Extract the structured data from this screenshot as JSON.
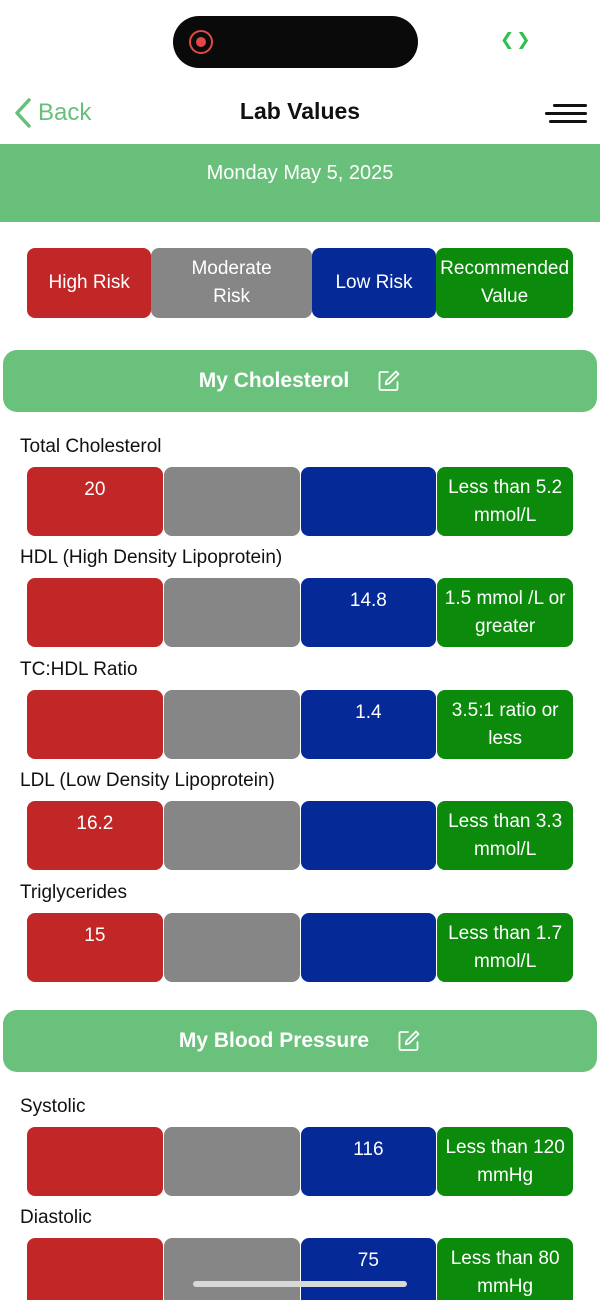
{
  "nav": {
    "back_label": "Back",
    "title": "Lab Values"
  },
  "date": "Monday May 5, 2025",
  "legend": [
    {
      "label": "High Risk",
      "color": "#c22727"
    },
    {
      "label": "Moderate Risk",
      "color": "#868686"
    },
    {
      "label": "Low Risk",
      "color": "#052997"
    },
    {
      "label": "Recommended Value",
      "color": "#0c8a0c"
    }
  ],
  "cholesterol": {
    "title": "My Cholesterol",
    "rows": [
      {
        "label": "Total Cholesterol",
        "high": "20",
        "moderate": "",
        "low": "",
        "recommended": "Less than 5.2 mmol/L"
      },
      {
        "label": "HDL (High Density Lipoprotein)",
        "high": "",
        "moderate": "",
        "low": "14.8",
        "recommended": "1.5 mmol /L or greater"
      },
      {
        "label": "TC:HDL Ratio",
        "high": "",
        "moderate": "",
        "low": "1.4",
        "recommended": "3.5:1 ratio or less"
      },
      {
        "label": "LDL (Low Density Lipoprotein)",
        "high": "16.2",
        "moderate": "",
        "low": "",
        "recommended": "Less than 3.3 mmol/L"
      },
      {
        "label": "Triglycerides",
        "high": "15",
        "moderate": "",
        "low": "",
        "recommended": "Less than 1.7 mmol/L"
      }
    ]
  },
  "blood_pressure": {
    "title": "My Blood Pressure",
    "rows": [
      {
        "label": "Systolic",
        "high": "",
        "moderate": "",
        "low": "116",
        "recommended": "Less than 120 mmHg"
      },
      {
        "label": "Diastolic",
        "high": "",
        "moderate": "",
        "low": "75",
        "recommended": "Less than 80 mmHg"
      }
    ]
  }
}
